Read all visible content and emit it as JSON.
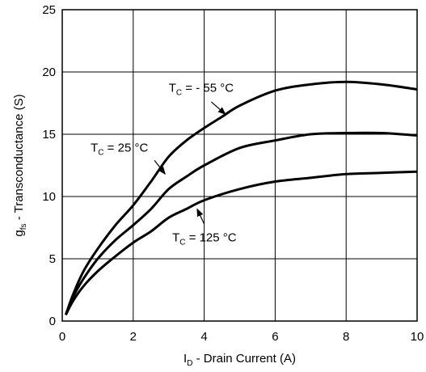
{
  "chart_data": {
    "type": "line",
    "title": "",
    "xlabel": {
      "main": "I",
      "sub": "D",
      "rest": " - Drain Current (A)"
    },
    "ylabel": {
      "main": "g",
      "sub": "fs",
      "rest": " - Transconductance (S)"
    },
    "xlim": [
      0,
      10
    ],
    "ylim": [
      0,
      25
    ],
    "xticks": [
      0,
      2,
      4,
      6,
      8,
      10
    ],
    "yticks": [
      0,
      5,
      10,
      15,
      20,
      25
    ],
    "grid": true,
    "series": [
      {
        "name": "- 55 °C",
        "x": [
          0.1,
          0.3,
          0.6,
          1.0,
          1.5,
          2.0,
          2.5,
          3.0,
          3.5,
          4.0,
          4.5,
          5.0,
          6.0,
          7.0,
          8.0,
          9.0,
          10.0
        ],
        "y": [
          0.5,
          2.1,
          4.0,
          5.8,
          7.7,
          9.3,
          11.2,
          13.2,
          14.5,
          15.5,
          16.4,
          17.3,
          18.5,
          19.0,
          19.2,
          19.0,
          18.6
        ]
      },
      {
        "name": "25 °C",
        "x": [
          0.1,
          0.3,
          0.6,
          1.0,
          1.5,
          2.0,
          2.5,
          3.0,
          3.5,
          4.0,
          5.0,
          6.0,
          7.0,
          8.0,
          9.0,
          10.0
        ],
        "y": [
          0.5,
          1.9,
          3.4,
          5.0,
          6.5,
          7.7,
          9.0,
          10.6,
          11.6,
          12.5,
          13.9,
          14.5,
          15.0,
          15.1,
          15.1,
          14.9
        ]
      },
      {
        "name": "125 °C",
        "x": [
          0.1,
          0.3,
          0.6,
          1.0,
          1.5,
          2.0,
          2.5,
          3.0,
          3.5,
          4.0,
          5.0,
          6.0,
          7.0,
          8.0,
          9.0,
          10.0
        ],
        "y": [
          0.5,
          1.6,
          2.8,
          4.0,
          5.2,
          6.3,
          7.2,
          8.3,
          9.0,
          9.7,
          10.6,
          11.2,
          11.5,
          11.8,
          11.9,
          12.0
        ]
      }
    ],
    "annotations": [
      {
        "series": 0,
        "prefix": "T",
        "sub": "C",
        "text": " = - 55 °C",
        "text_at": [
          3.0,
          18.4
        ],
        "arrow_from": [
          4.2,
          17.6
        ],
        "arrow_to": [
          4.6,
          16.6
        ]
      },
      {
        "series": 1,
        "prefix": "T",
        "sub": "C",
        "text": " = 25 °C",
        "text_at": [
          0.8,
          13.6
        ],
        "arrow_from": [
          2.6,
          12.9
        ],
        "arrow_to": [
          2.9,
          11.8
        ]
      },
      {
        "series": 2,
        "prefix": "T",
        "sub": "C",
        "text": " = 125 °C",
        "text_at": [
          3.1,
          6.4
        ],
        "arrow_from": [
          4.0,
          7.8
        ],
        "arrow_to": [
          3.8,
          9.0
        ]
      }
    ]
  }
}
